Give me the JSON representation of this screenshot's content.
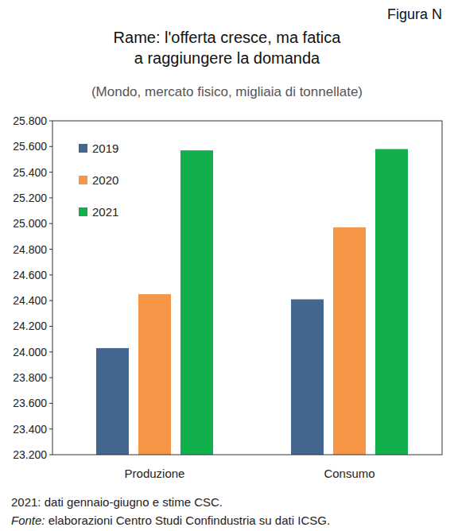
{
  "figure_label": "Figura N",
  "chart_data": {
    "type": "bar",
    "title": "Rame: l'offerta cresce, ma fatica a raggiungere la domanda",
    "subtitle": "(Mondo, mercato fisico, migliaia di tonnellate)",
    "categories": [
      "Produzione",
      "Consumo"
    ],
    "series": [
      {
        "name": "2019",
        "color": "#44678f",
        "values": [
          24030,
          24410
        ]
      },
      {
        "name": "2020",
        "color": "#f79646",
        "values": [
          24450,
          24970
        ]
      },
      {
        "name": "2021",
        "color": "#12b04a",
        "values": [
          25570,
          25580
        ]
      }
    ],
    "ylim": [
      23200,
      25800
    ],
    "yticks": [
      {
        "value": 23200,
        "label": "23.200"
      },
      {
        "value": 23400,
        "label": "23.400"
      },
      {
        "value": 23600,
        "label": "23.600"
      },
      {
        "value": 23800,
        "label": "23.800"
      },
      {
        "value": 24000,
        "label": "24.000"
      },
      {
        "value": 24200,
        "label": "24.200"
      },
      {
        "value": 24400,
        "label": "24.400"
      },
      {
        "value": 24600,
        "label": "24.600"
      },
      {
        "value": 24800,
        "label": "24.800"
      },
      {
        "value": 25000,
        "label": "25.000"
      },
      {
        "value": 25200,
        "label": "25.200"
      },
      {
        "value": 25400,
        "label": "25.400"
      },
      {
        "value": 25600,
        "label": "25.600"
      },
      {
        "value": 25800,
        "label": "25.800"
      }
    ],
    "grid": false,
    "legend": "top-left",
    "note": "2021: dati gennaio-giugno e stime CSC.",
    "source": "Fonte: elaborazioni Centro Studi Confindustria su dati ICSG."
  }
}
